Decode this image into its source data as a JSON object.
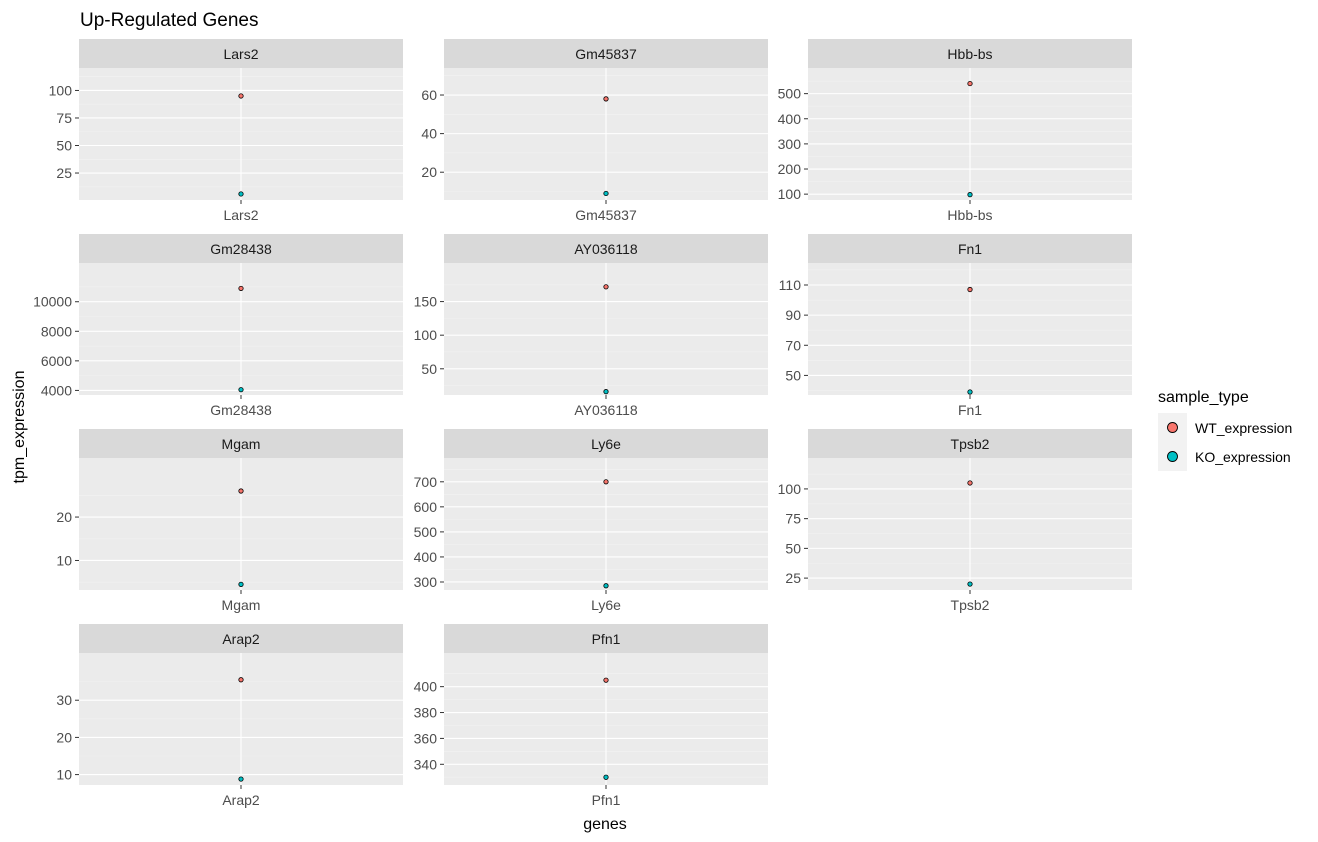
{
  "chart_data": {
    "type": "scatter",
    "title": "Up-Regulated Genes",
    "xlabel": "genes",
    "ylabel": "tpm_expression",
    "legend": {
      "title": "sample_type",
      "placement": "right",
      "entries": [
        {
          "name": "WT_expression",
          "color": "#F8766D"
        },
        {
          "name": "KO_expression",
          "color": "#00BFC4"
        }
      ]
    },
    "facets": [
      {
        "gene": "Lars2",
        "ylim": [
          0.5,
          120.4
        ],
        "yticks": [
          25,
          50,
          75,
          100
        ],
        "points": [
          {
            "series": "WT_expression",
            "value": 95
          },
          {
            "series": "KO_expression",
            "value": 6
          }
        ]
      },
      {
        "gene": "Gm45837",
        "ylim": [
          5.6,
          74
        ],
        "yticks": [
          20,
          40,
          60
        ],
        "points": [
          {
            "series": "WT_expression",
            "value": 58
          },
          {
            "series": "KO_expression",
            "value": 9
          }
        ]
      },
      {
        "gene": "Hbb-bs",
        "ylim": [
          76.7,
          602
        ],
        "yticks": [
          100,
          200,
          300,
          400,
          500
        ],
        "points": [
          {
            "series": "WT_expression",
            "value": 540
          },
          {
            "series": "KO_expression",
            "value": 98
          }
        ]
      },
      {
        "gene": "Gm28438",
        "ylim": [
          3690,
          12620
        ],
        "yticks": [
          4000,
          6000,
          8000,
          10000
        ],
        "points": [
          {
            "series": "WT_expression",
            "value": 10900
          },
          {
            "series": "KO_expression",
            "value": 4050
          }
        ]
      },
      {
        "gene": "AY036118",
        "ylim": [
          11,
          207.4
        ],
        "yticks": [
          50,
          100,
          150
        ],
        "points": [
          {
            "series": "WT_expression",
            "value": 172
          },
          {
            "series": "KO_expression",
            "value": 16
          }
        ]
      },
      {
        "gene": "Fn1",
        "ylim": [
          37,
          124.6
        ],
        "yticks": [
          50,
          70,
          90,
          110
        ],
        "points": [
          {
            "series": "WT_expression",
            "value": 107
          },
          {
            "series": "KO_expression",
            "value": 39
          }
        ]
      },
      {
        "gene": "Mgam",
        "ylim": [
          3.2,
          33.6
        ],
        "yticks": [
          10,
          20
        ],
        "points": [
          {
            "series": "WT_expression",
            "value": 26
          },
          {
            "series": "KO_expression",
            "value": 4.5
          }
        ]
      },
      {
        "gene": "Ly6e",
        "ylim": [
          268,
          795
        ],
        "yticks": [
          300,
          400,
          500,
          600,
          700
        ],
        "points": [
          {
            "series": "WT_expression",
            "value": 700
          },
          {
            "series": "KO_expression",
            "value": 285
          }
        ]
      },
      {
        "gene": "Tpsb2",
        "ylim": [
          15,
          126
        ],
        "yticks": [
          25,
          50,
          75,
          100
        ],
        "points": [
          {
            "series": "WT_expression",
            "value": 105
          },
          {
            "series": "KO_expression",
            "value": 20
          }
        ]
      },
      {
        "gene": "Arap2",
        "ylim": [
          7.2,
          42.7
        ],
        "yticks": [
          10,
          20,
          30
        ],
        "points": [
          {
            "series": "WT_expression",
            "value": 35.5
          },
          {
            "series": "KO_expression",
            "value": 8.8
          }
        ]
      },
      {
        "gene": "Pfn1",
        "ylim": [
          324,
          426
        ],
        "yticks": [
          340,
          360,
          380,
          400
        ],
        "points": [
          {
            "series": "WT_expression",
            "value": 405
          },
          {
            "series": "KO_expression",
            "value": 330
          }
        ]
      }
    ],
    "grid": true
  }
}
